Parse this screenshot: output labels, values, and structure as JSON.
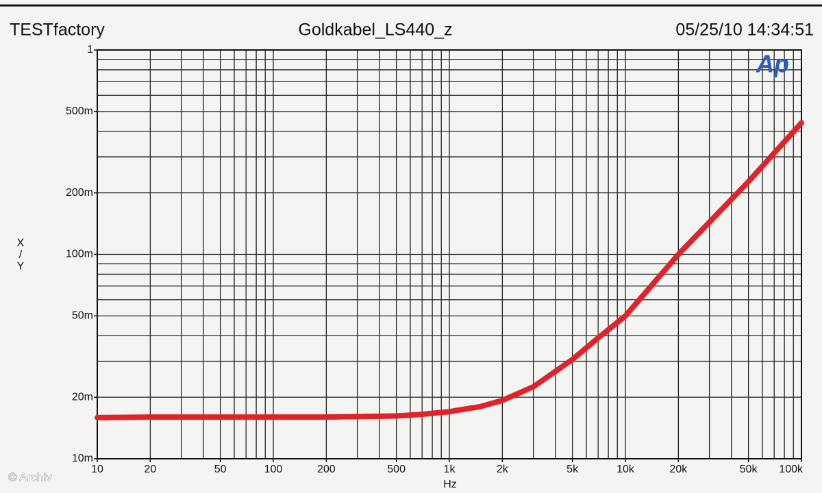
{
  "chart_data": {
    "type": "line",
    "header": {
      "left": "TESTfactory",
      "center": "Goldkabel_LS440_z",
      "right": "05/25/10 14:34:51"
    },
    "xlabel": "Hz",
    "ylabel": "X/Y",
    "logo": "Ap",
    "watermark": "© Archiv",
    "xlog": true,
    "ylog": true,
    "grid": true,
    "color": "#e0232b",
    "xlim": [
      10,
      100000
    ],
    "ylim": [
      0.01,
      1
    ],
    "xticks": [
      10,
      20,
      50,
      100,
      200,
      500,
      {
        "value": 1000,
        "label": "1k"
      },
      {
        "value": 2000,
        "label": "2k"
      },
      {
        "value": 5000,
        "label": "5k"
      },
      {
        "value": 10000,
        "label": "10k"
      },
      {
        "value": 20000,
        "label": "20k"
      },
      {
        "value": 50000,
        "label": "50k"
      },
      {
        "value": 100000,
        "label": "100k"
      }
    ],
    "yticks": [
      {
        "value": 0.01,
        "label": "10m"
      },
      {
        "value": 0.02,
        "label": "20m"
      },
      {
        "value": 0.05,
        "label": "50m"
      },
      {
        "value": 0.1,
        "label": "100m"
      },
      {
        "value": 0.2,
        "label": "200m"
      },
      {
        "value": 0.5,
        "label": "500m"
      },
      1
    ],
    "xgrid": [
      10,
      20,
      30,
      40,
      50,
      60,
      70,
      80,
      90,
      100,
      200,
      300,
      400,
      500,
      600,
      700,
      800,
      900,
      1000,
      2000,
      3000,
      4000,
      5000,
      6000,
      7000,
      8000,
      9000,
      10000,
      20000,
      30000,
      40000,
      50000,
      60000,
      70000,
      80000,
      90000,
      100000
    ],
    "ygrid": [
      0.01,
      0.02,
      0.03,
      0.04,
      0.05,
      0.06,
      0.07,
      0.08,
      0.09,
      0.1,
      0.2,
      0.3,
      0.4,
      0.5,
      0.6,
      0.7,
      0.8,
      0.9,
      1
    ],
    "x": [
      10,
      20,
      50,
      100,
      200,
      500,
      700,
      1000,
      1500,
      2000,
      3000,
      5000,
      7000,
      10000,
      20000,
      50000,
      100000
    ],
    "values": [
      0.0159,
      0.016,
      0.016,
      0.016,
      0.016,
      0.0162,
      0.0165,
      0.017,
      0.018,
      0.0193,
      0.0225,
      0.0306,
      0.039,
      0.05,
      0.1,
      0.227,
      0.44
    ]
  }
}
